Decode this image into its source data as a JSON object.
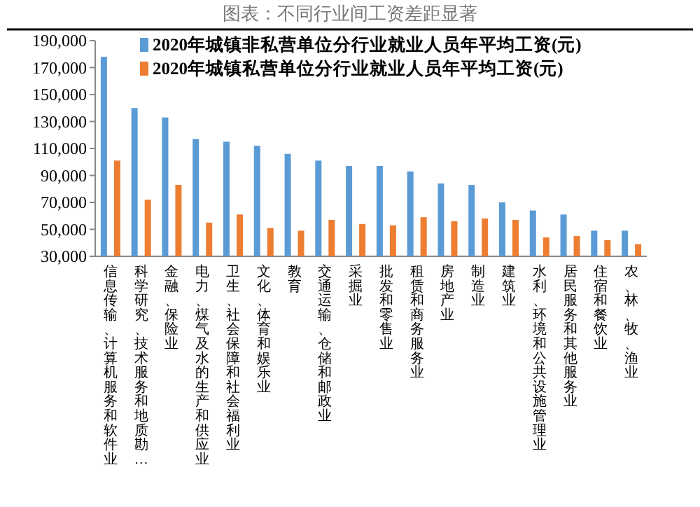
{
  "chart_data": {
    "type": "bar",
    "title": "图表：不同行业间工资差距显著",
    "categories": [
      "信息传输、计算机服务和软件业",
      "科学研究、技术服务和地质勘…",
      "金融、保险业",
      "电力、煤气及水的生产和供应业",
      "卫生、社会保障和社会福利业",
      "文化、体育和娱乐业",
      "教育",
      "交通运输、仓储和邮政业",
      "采掘业",
      "批发和零售业",
      "租赁和商务服务业",
      "房地产业",
      "制造业",
      "建筑业",
      "水利、环境和公共设施管理业",
      "居民服务和其他服务业",
      "住宿和餐饮业",
      "农、林、牧、渔业"
    ],
    "series": [
      {
        "name": "2020年城镇非私营单位分行业就业人员年平均工资(元)",
        "color": "#5b9bd5",
        "values": [
          178000,
          140000,
          133000,
          117000,
          115000,
          112000,
          106000,
          101000,
          97000,
          97000,
          93000,
          84000,
          83000,
          70000,
          64000,
          61000,
          49000,
          49000
        ]
      },
      {
        "name": "2020年城镇私营单位分行业就业人员年平均工资(元)",
        "color": "#ed7d31",
        "values": [
          101000,
          72000,
          83000,
          55000,
          61000,
          51000,
          49000,
          57000,
          54000,
          53000,
          59000,
          56000,
          58000,
          57000,
          44000,
          45000,
          42000,
          39000
        ]
      }
    ],
    "ylim": [
      30000,
      190000
    ],
    "yticks": [
      {
        "value": 30000,
        "label": "30,000"
      },
      {
        "value": 50000,
        "label": "50,000"
      },
      {
        "value": 70000,
        "label": "70,000"
      },
      {
        "value": 90000,
        "label": "90,000"
      },
      {
        "value": 110000,
        "label": "110,000"
      },
      {
        "value": 130000,
        "label": "130,000"
      },
      {
        "value": 150000,
        "label": "150,000"
      },
      {
        "value": 170000,
        "label": "170,000"
      },
      {
        "value": 190000,
        "label": "190,000"
      }
    ],
    "legend": "top",
    "grid": false
  }
}
